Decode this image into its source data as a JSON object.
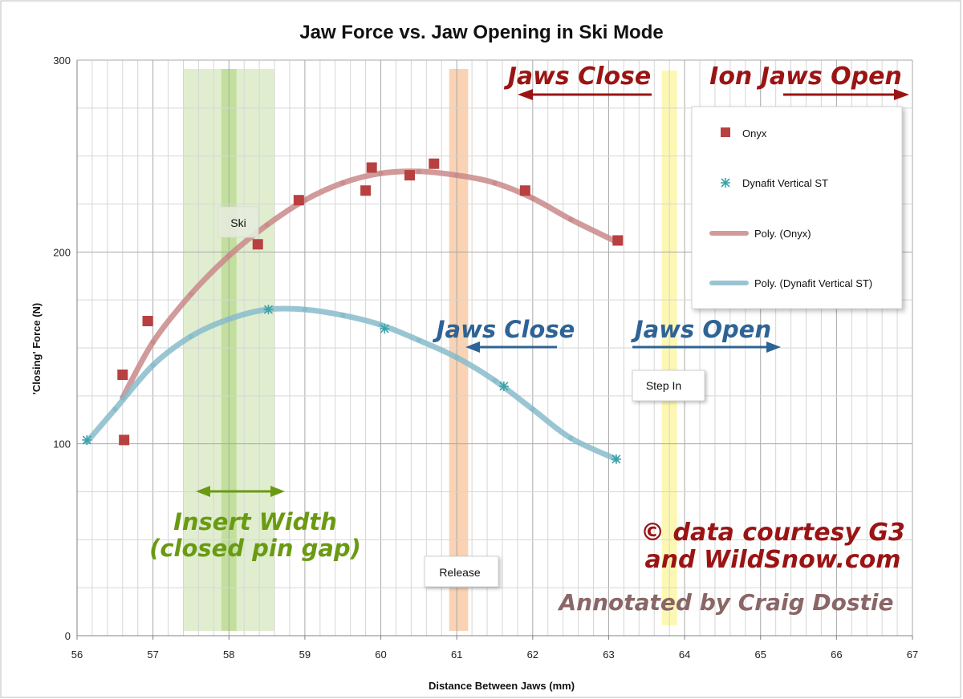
{
  "chart_data": {
    "type": "scatter",
    "title": "Jaw Force vs. Jaw Opening in Ski Mode",
    "xlabel": "Distance Between Jaws (mm)",
    "ylabel": "'Closing' Force (N)",
    "xlim": [
      56,
      67
    ],
    "ylim": [
      0,
      300
    ],
    "x_ticks": [
      "56",
      "57",
      "58",
      "59",
      "60",
      "61",
      "62",
      "63",
      "64",
      "65",
      "66",
      "67"
    ],
    "y_ticks": [
      "0",
      "100",
      "200",
      "300"
    ],
    "grid": true,
    "legend_position": "top-right",
    "legend": {
      "onyx": "Onyx",
      "dynafit": "Dynafit Vertical ST",
      "poly_onyx": "Poly. (Onyx)",
      "poly_dynafit": "Poly. (Dynafit Vertical ST)"
    },
    "series": [
      {
        "name": "Onyx",
        "color": "#b94040",
        "marker": "square",
        "x": [
          56.6,
          56.62,
          56.93,
          58.38,
          58.92,
          59.8,
          59.88,
          60.38,
          60.7,
          61.9,
          63.12
        ],
        "y": [
          136,
          102,
          164,
          204,
          227,
          232,
          244,
          240,
          246,
          232,
          206
        ]
      },
      {
        "name": "Dynafit Vertical ST",
        "color": "#3aa3ab",
        "marker": "star",
        "x": [
          56.13,
          58.52,
          60.05,
          61.62,
          63.1
        ],
        "y": [
          102,
          170,
          160,
          130,
          92
        ]
      }
    ],
    "trendlines": [
      {
        "name": "Poly. (Onyx)",
        "color": "#c98a8a",
        "x": [
          56.6,
          57.0,
          57.5,
          58.0,
          58.5,
          59.0,
          59.5,
          60.0,
          60.5,
          61.0,
          61.5,
          62.0,
          62.5,
          63.12
        ],
        "y": [
          124,
          153,
          178,
          198,
          214,
          227,
          236,
          241,
          242,
          240,
          236,
          228,
          217,
          205
        ]
      },
      {
        "name": "Poly. (Dynafit Vertical ST)",
        "color": "#88bccb",
        "x": [
          56.13,
          56.5,
          57.0,
          57.5,
          58.0,
          58.5,
          59.0,
          59.5,
          60.0,
          60.5,
          61.0,
          61.5,
          62.0,
          62.5,
          63.1
        ],
        "y": [
          101,
          118,
          141,
          156,
          165,
          170,
          170,
          167,
          162,
          154,
          145,
          133,
          118,
          103,
          92
        ]
      }
    ],
    "annotations": {
      "ion_jaws_open": "Ion Jaws Open",
      "jaws_close_top": "Jaws Close",
      "jaws_close_mid": "Jaws Close",
      "jaws_open_mid": "Jaws Open",
      "ski": "Ski",
      "step_in": "Step In",
      "release": "Release",
      "insert_width_1": "Insert Width",
      "insert_width_2": "(closed pin gap)",
      "credit_1": "© data courtesy G3",
      "credit_2": "and WildSnow.com",
      "annotated_by": "Annotated by Craig Dostie"
    },
    "bands": [
      {
        "label": "insert-width",
        "x_start": 57.4,
        "x_end": 58.6,
        "color": "#c6e0a8"
      },
      {
        "label": "ski-line",
        "x_start": 57.9,
        "x_end": 58.1,
        "color": "#b9d98e"
      },
      {
        "label": "release",
        "x_start": 60.9,
        "x_end": 61.15,
        "color": "#f7c49a"
      },
      {
        "label": "step-in",
        "x_start": 63.7,
        "x_end": 63.9,
        "color": "#fbf59a"
      }
    ],
    "colors": {
      "red_annotation": "#9b1414",
      "blue_annotation": "#2e6395",
      "green_annotation": "#6a9a12",
      "credit_gray": "#8a6666"
    }
  }
}
